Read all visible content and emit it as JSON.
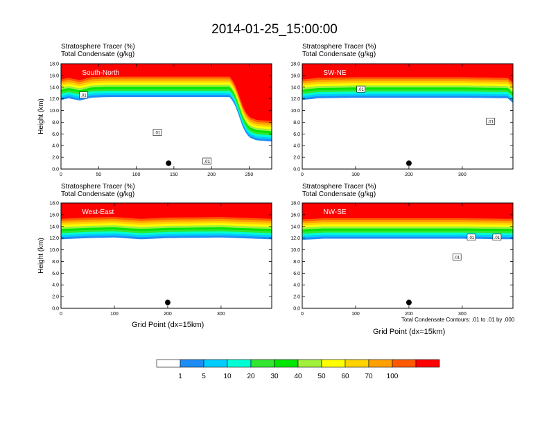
{
  "title": "2014-01-25_15:00:00",
  "colors": {
    "levels": [
      "#ffffff",
      "#1e8cf5",
      "#00cdff",
      "#00ffd2",
      "#32e632",
      "#00e600",
      "#a0f03c",
      "#ffff00",
      "#ffd200",
      "#ffa000",
      "#ff5a00",
      "#ff0000"
    ],
    "contour": "#000000"
  },
  "chart_data": [
    {
      "type": "heatmap",
      "panel_label": "South-North",
      "header_lines": [
        "Stratosphere Tracer   (%)",
        "Total Condensate   (g/kg)"
      ],
      "xlabel": "",
      "ylabel": "Height (km)",
      "xlim": [
        0,
        280
      ],
      "ylim": [
        0,
        18
      ],
      "xticks": [
        0,
        50,
        100,
        150,
        200,
        250
      ],
      "yticks": [
        "0.0",
        "2.0",
        "4.0",
        "6.0",
        "8.0",
        "10.0",
        "12.0",
        "14.0",
        "16.0",
        "18.0"
      ],
      "tracer_top_km": [
        [
          0,
          15.3
        ],
        [
          10,
          15.6
        ],
        [
          25,
          15.2
        ],
        [
          40,
          15.7
        ],
        [
          60,
          15.8
        ],
        [
          100,
          15.8
        ],
        [
          150,
          15.8
        ],
        [
          200,
          15.8
        ],
        [
          225,
          15.8
        ],
        [
          232,
          14.2
        ],
        [
          238,
          12.0
        ],
        [
          243,
          10.2
        ],
        [
          250,
          8.9
        ],
        [
          260,
          8.4
        ],
        [
          280,
          8.2
        ]
      ],
      "contour_labels": [
        {
          "x": 30,
          "y": 12.6,
          "text": ".01"
        },
        {
          "x": 128,
          "y": 6.2,
          "text": ".01"
        },
        {
          "x": 194,
          "y": 1.3,
          "text": ".01"
        }
      ],
      "marker": {
        "x": 143,
        "y": 1.0
      }
    },
    {
      "type": "heatmap",
      "panel_label": "SW-NE",
      "header_lines": [
        "Stratosphere Tracer   (%)",
        "Total Condensate   (g/kg)"
      ],
      "xlabel": "",
      "ylabel": "",
      "xlim": [
        0,
        395
      ],
      "ylim": [
        0,
        18
      ],
      "xticks": [
        0,
        100,
        200,
        300
      ],
      "yticks": [
        "0.0",
        "2.0",
        "4.0",
        "6.0",
        "8.0",
        "10.0",
        "12.0",
        "14.0",
        "16.0",
        "18.0"
      ],
      "tracer_top_km": [
        [
          0,
          15.3
        ],
        [
          30,
          15.6
        ],
        [
          100,
          15.7
        ],
        [
          200,
          15.7
        ],
        [
          300,
          15.7
        ],
        [
          385,
          15.6
        ],
        [
          395,
          14.8
        ]
      ],
      "contour_labels": [
        {
          "x": 110,
          "y": 13.6,
          "text": ".01"
        },
        {
          "x": 353,
          "y": 8.1,
          "text": ".01"
        }
      ],
      "marker": {
        "x": 200,
        "y": 1.0
      }
    },
    {
      "type": "heatmap",
      "panel_label": "West-East",
      "header_lines": [
        "Stratosphere Tracer   (%)",
        "Total Condensate   (g/kg)"
      ],
      "xlabel": "Grid Point (dx=15km)",
      "ylabel": "Height (km)",
      "xlim": [
        0,
        395
      ],
      "ylim": [
        0,
        18
      ],
      "xticks": [
        0,
        100,
        200,
        300
      ],
      "yticks": [
        "0.0",
        "2.0",
        "4.0",
        "6.0",
        "8.0",
        "10.0",
        "12.0",
        "14.0",
        "16.0",
        "18.0"
      ],
      "tracer_top_km": [
        [
          0,
          15.3
        ],
        [
          50,
          15.5
        ],
        [
          100,
          15.6
        ],
        [
          150,
          15.3
        ],
        [
          200,
          15.5
        ],
        [
          300,
          15.6
        ],
        [
          395,
          15.3
        ]
      ],
      "contour_labels": [],
      "marker": {
        "x": 200,
        "y": 1.0
      }
    },
    {
      "type": "heatmap",
      "panel_label": "NW-SE",
      "header_lines": [
        "Stratosphere Tracer   (%)",
        "Total Condensate   (g/kg)"
      ],
      "xlabel": "Grid Point (dx=15km)",
      "ylabel": "",
      "note": "Total Condensate Contours: .01 to .01 by .000",
      "xlim": [
        0,
        395
      ],
      "ylim": [
        0,
        18
      ],
      "xticks": [
        0,
        100,
        200,
        300
      ],
      "yticks": [
        "0.0",
        "2.0",
        "4.0",
        "6.0",
        "8.0",
        "10.0",
        "12.0",
        "14.0",
        "16.0",
        "18.0"
      ],
      "tracer_top_km": [
        [
          0,
          15.2
        ],
        [
          40,
          15.4
        ],
        [
          100,
          15.4
        ],
        [
          200,
          15.4
        ],
        [
          300,
          15.4
        ],
        [
          395,
          15.3
        ]
      ],
      "contour_labels": [
        {
          "x": 317,
          "y": 12.1,
          "text": ".01"
        },
        {
          "x": 365,
          "y": 12.1,
          "text": ".01"
        },
        {
          "x": 290,
          "y": 8.7,
          "text": ".01"
        }
      ],
      "marker": {
        "x": 200,
        "y": 1.0
      }
    }
  ],
  "colorbar": {
    "labels": [
      "1",
      "5",
      "10",
      "20",
      "30",
      "40",
      "50",
      "60",
      "70",
      "100"
    ]
  }
}
